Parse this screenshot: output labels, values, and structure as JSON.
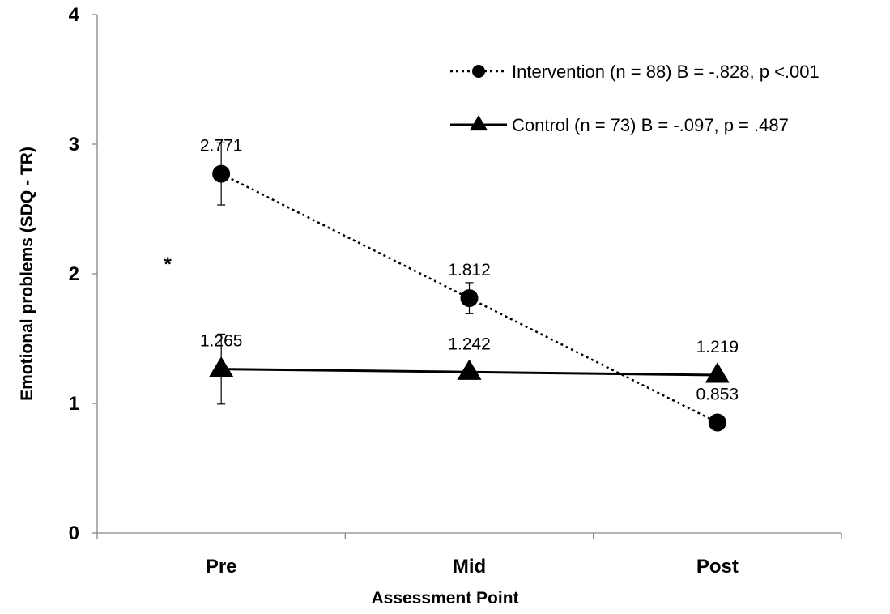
{
  "chart_data": {
    "type": "line",
    "title": "",
    "xlabel": "Assessment Point",
    "ylabel": "Emotional problems  (SDQ - TR)",
    "categories": [
      "Pre",
      "Mid",
      "Post"
    ],
    "ylim": [
      0,
      4
    ],
    "yticks": [
      "0",
      "1",
      "2",
      "3",
      "4"
    ],
    "grid": false,
    "legend_position": "top-right",
    "annotation": "*",
    "series": [
      {
        "name": "Intervention (n = 88) B = -.828, p <.001",
        "values": [
          2.771,
          1.812,
          0.853
        ],
        "labels": [
          "2.771",
          "1.812",
          "0.853"
        ],
        "error": [
          0.24,
          0.12,
          null
        ],
        "line_style": "dotted",
        "marker": "circle",
        "color": "#000000"
      },
      {
        "name": "Control (n = 73) B = -.097, p = .487",
        "values": [
          1.265,
          1.242,
          1.219
        ],
        "labels": [
          "1.265",
          "1.242",
          "1.219"
        ],
        "error": [
          0.27,
          null,
          null
        ],
        "line_style": "solid",
        "marker": "triangle",
        "color": "#000000"
      }
    ]
  }
}
